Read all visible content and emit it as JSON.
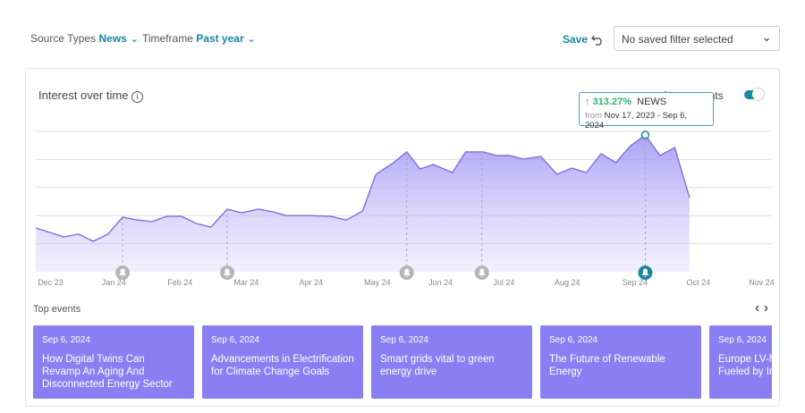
{
  "header": {
    "source_label": "Source Types",
    "source_value": "News",
    "timeframe_label": "Timeframe",
    "timeframe_value": "Past year",
    "save": "Save",
    "saved_filter": "No saved filter selected"
  },
  "panel": {
    "title": "Interest over time",
    "toggle_label": "Show events"
  },
  "tooltip": {
    "change": "313.27%",
    "source": "NEWS",
    "from_label": "from",
    "range": "Nov 17, 2023 - Sep 6, 2024"
  },
  "chart_data": {
    "type": "area",
    "x": [
      0,
      1.9,
      2.9,
      3.9,
      4.9,
      5.9,
      6.9,
      7.9,
      8.9,
      9.9,
      10.9,
      11.9,
      13.0,
      14.0,
      15.1,
      16.1,
      17.0,
      18.2,
      20.0,
      21.1,
      22.2,
      23.1,
      24.3,
      25.2,
      26.1,
      27.0,
      28.3,
      29.2,
      30.4,
      31.3,
      32.2,
      33.1,
      34.3,
      35.4,
      36.4,
      37.4,
      38.4,
      39.4,
      40.4,
      41.4,
      42.4,
      43.4,
      44.4
    ],
    "values": [
      31.2,
      24.8,
      26.8,
      21.7,
      26.8,
      38.9,
      36.9,
      35.7,
      39.5,
      39.5,
      34.4,
      31.8,
      44.6,
      42.0,
      44.6,
      42.7,
      40.1,
      40.1,
      39.5,
      36.9,
      43.3,
      69.4,
      77.7,
      85.4,
      73.2,
      76.4,
      70.7,
      85.4,
      85.4,
      82.8,
      82.8,
      80.3,
      82.2,
      69.4,
      73.9,
      70.7,
      84.1,
      77.7,
      89.8,
      97.5,
      82.8,
      88.5,
      52.9
    ],
    "color": "#7b6fe0",
    "xlim": [
      0,
      50
    ],
    "ylim": [
      0,
      100
    ],
    "xticks": [
      {
        "value": 1.0,
        "label": "Dec 23"
      },
      {
        "value": 5.3,
        "label": "Jan 24"
      },
      {
        "value": 9.8,
        "label": "Feb 24"
      },
      {
        "value": 14.3,
        "label": "Mar 24"
      },
      {
        "value": 18.7,
        "label": "Apr 24"
      },
      {
        "value": 23.2,
        "label": "May 24"
      },
      {
        "value": 27.5,
        "label": "Jun 24"
      },
      {
        "value": 31.8,
        "label": "Jul 24"
      },
      {
        "value": 36.1,
        "label": "Aug 24"
      },
      {
        "value": 40.7,
        "label": "Sep 24"
      },
      {
        "value": 45.0,
        "label": "Oct 24"
      },
      {
        "value": 49.3,
        "label": "Nov 24"
      }
    ],
    "yticks": [
      20,
      40,
      60,
      80,
      100
    ],
    "grid": true,
    "event_markers": [
      5.9,
      13.0,
      25.2,
      30.3,
      41.4
    ]
  },
  "events": {
    "title": "Top events",
    "cards": [
      {
        "date": "Sep 6, 2024",
        "title": "How Digital Twins Can Revamp An Aging And Disconnected Energy Sector"
      },
      {
        "date": "Sep 6, 2024",
        "title": "Advancements in Electrification for Climate Change Goals"
      },
      {
        "date": "Sep 6, 2024",
        "title": "Smart grids vital to green energy drive"
      },
      {
        "date": "Sep 6, 2024",
        "title": "The Future of Renewable Energy"
      },
      {
        "date": "Sep 6, 2024",
        "title": "Europe LV-M Market: Envi Fueled by In"
      }
    ]
  }
}
